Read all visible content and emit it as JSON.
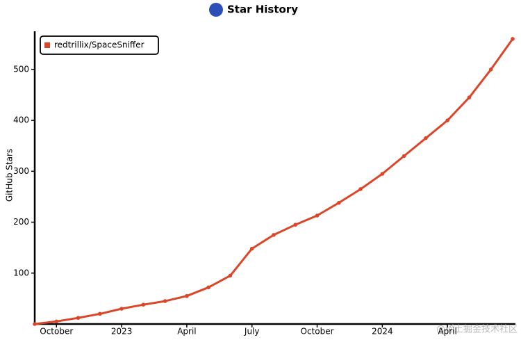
{
  "chart_data": {
    "type": "line",
    "title": "Star History",
    "y_label": "GitHub Stars",
    "x": [
      "2022-09",
      "2022-10",
      "2022-11",
      "2022-12",
      "2023-01",
      "2023-02",
      "2023-03",
      "2023-04",
      "2023-05",
      "2023-06",
      "2023-07",
      "2023-08",
      "2023-09",
      "2023-10",
      "2023-11",
      "2023-12",
      "2024-01",
      "2024-02",
      "2024-03",
      "2024-04",
      "2024-05",
      "2024-06",
      "2024-07"
    ],
    "series": [
      {
        "name": "redtrillix/SpaceSniffer",
        "color": "#dd4528",
        "values": [
          0,
          5,
          12,
          20,
          30,
          38,
          45,
          55,
          72,
          95,
          148,
          175,
          195,
          213,
          238,
          265,
          295,
          330,
          365,
          400,
          445,
          500,
          560
        ]
      }
    ],
    "xlim": [
      "2022-09",
      "2024-07"
    ],
    "xticks": [
      {
        "value": "2022-10",
        "label": "October"
      },
      {
        "value": "2023-01",
        "label": "2023"
      },
      {
        "value": "2023-04",
        "label": "April"
      },
      {
        "value": "2023-07",
        "label": "July"
      },
      {
        "value": "2023-10",
        "label": "October"
      },
      {
        "value": "2024-01",
        "label": "2024"
      },
      {
        "value": "2024-04",
        "label": "April"
      }
    ],
    "ylim": [
      0,
      575
    ],
    "yticks": [
      100,
      200,
      300,
      400,
      500
    ],
    "legend_position": "top-left",
    "watermark": "@稀土掘金技术社区"
  }
}
